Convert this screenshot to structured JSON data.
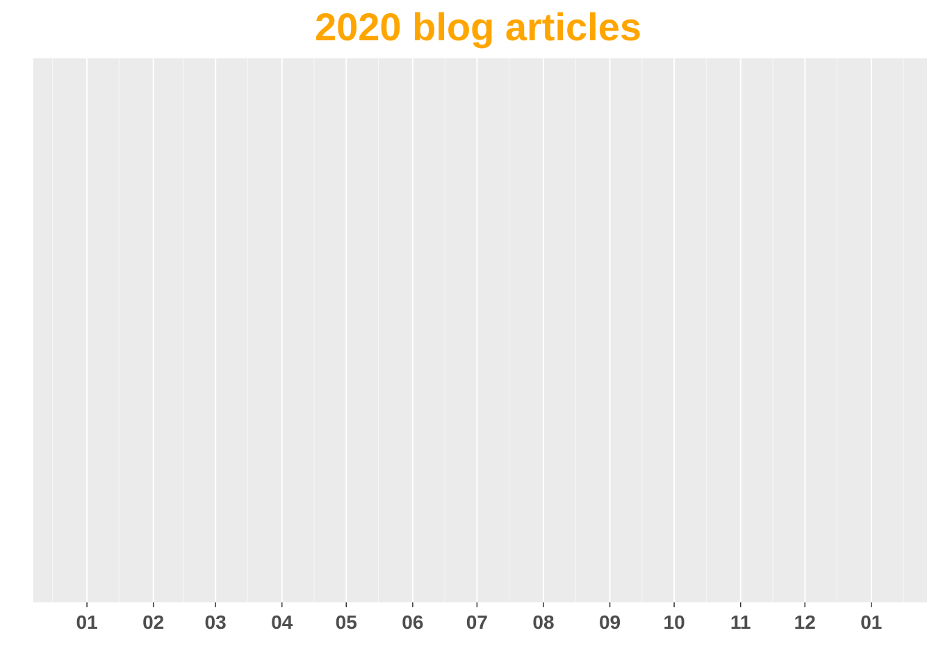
{
  "chart_data": {
    "type": "scatter",
    "title": "2020 blog articles",
    "xlabel": "",
    "ylabel": "",
    "x_axis": {
      "type": "date",
      "xlim": [
        "2019-12-07",
        "2021-01-27"
      ],
      "major_ticks": [
        "2020-01-01",
        "2020-02-01",
        "2020-03-01",
        "2020-04-01",
        "2020-05-01",
        "2020-06-01",
        "2020-07-01",
        "2020-08-01",
        "2020-09-01",
        "2020-10-01",
        "2020-11-01",
        "2020-12-01",
        "2021-01-01"
      ],
      "tick_labels": [
        "01",
        "02",
        "03",
        "04",
        "05",
        "06",
        "07",
        "08",
        "09",
        "10",
        "11",
        "12",
        "01"
      ],
      "minor_ticks": [
        "2019-12-16",
        "2020-01-16",
        "2020-02-15",
        "2020-03-16",
        "2020-04-16",
        "2020-05-16",
        "2020-06-16",
        "2020-07-16",
        "2020-08-16",
        "2020-09-16",
        "2020-10-16",
        "2020-11-16",
        "2020-12-16",
        "2021-01-16"
      ]
    },
    "y_axis": {
      "visible": false
    },
    "series": [],
    "grid": true,
    "legend": "none"
  },
  "colors": {
    "title": "#FFA500",
    "panel_background": "#EBEBEB",
    "grid_major": "#FFFFFF",
    "grid_minor": "#F7F7F7",
    "tick_label": "#4D4D4D",
    "tick_mark": "#333333"
  }
}
